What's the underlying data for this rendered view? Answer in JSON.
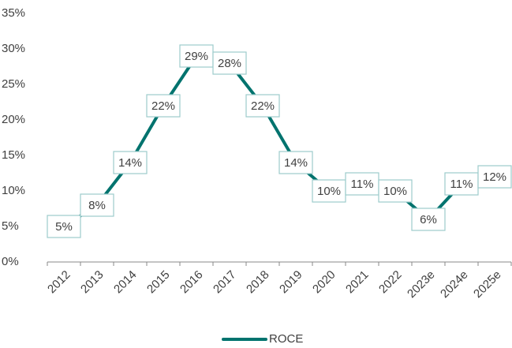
{
  "chart_data": {
    "type": "line",
    "categories": [
      "2012",
      "2013",
      "2014",
      "2015",
      "2016",
      "2017",
      "2018",
      "2019",
      "2020",
      "2021",
      "2022",
      "2023e",
      "2024e",
      "2025e"
    ],
    "series": [
      {
        "name": "ROCE",
        "color": "#00736e",
        "values": [
          5,
          8,
          14,
          22,
          29,
          28,
          22,
          14,
          10,
          11,
          10,
          6,
          11,
          12
        ],
        "value_labels": [
          "5%",
          "8%",
          "14%",
          "22%",
          "29%",
          "28%",
          "22%",
          "14%",
          "10%",
          "11%",
          "10%",
          "6%",
          "11%",
          "12%"
        ]
      }
    ],
    "ylim": [
      0,
      35
    ],
    "yticks": [
      {
        "value": 0,
        "label": "0%"
      },
      {
        "value": 5,
        "label": "5%"
      },
      {
        "value": 10,
        "label": "10%"
      },
      {
        "value": 15,
        "label": "15%"
      },
      {
        "value": 20,
        "label": "20%"
      },
      {
        "value": 25,
        "label": "25%"
      },
      {
        "value": 30,
        "label": "30%"
      },
      {
        "value": 35,
        "label": "35%"
      }
    ],
    "legend": "bottom"
  }
}
